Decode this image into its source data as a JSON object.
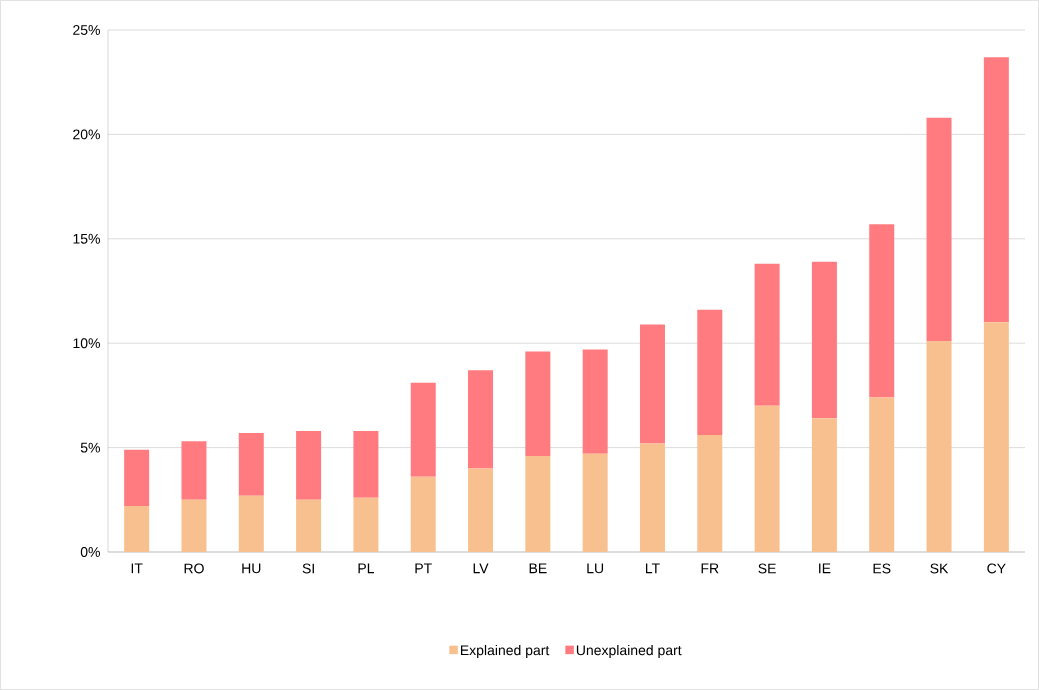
{
  "chart_data": {
    "type": "bar",
    "stacked": true,
    "categories": [
      "IT",
      "RO",
      "HU",
      "SI",
      "PL",
      "PT",
      "LV",
      "BE",
      "LU",
      "LT",
      "FR",
      "SE",
      "IE",
      "ES",
      "SK",
      "CY"
    ],
    "series": [
      {
        "name": "Explained part",
        "color": "#f9c08f",
        "values": [
          2.2,
          2.5,
          2.7,
          2.5,
          2.6,
          3.6,
          4.0,
          4.6,
          4.7,
          5.2,
          5.6,
          7.0,
          6.4,
          7.4,
          10.1,
          11.0
        ]
      },
      {
        "name": "Unexplained part",
        "color": "#ff7b80",
        "values": [
          2.7,
          2.8,
          3.0,
          3.3,
          3.2,
          4.5,
          4.7,
          5.0,
          5.0,
          5.7,
          6.0,
          6.8,
          7.5,
          8.3,
          10.7,
          12.7
        ]
      }
    ],
    "ylim": [
      0,
      25
    ],
    "yticks": [
      {
        "value": 0,
        "label": "0%"
      },
      {
        "value": 5,
        "label": "5%"
      },
      {
        "value": 10,
        "label": "10%"
      },
      {
        "value": 15,
        "label": "15%"
      },
      {
        "value": 20,
        "label": "20%"
      },
      {
        "value": 25,
        "label": "25%"
      }
    ],
    "grid": "y",
    "legend": "bottom"
  }
}
